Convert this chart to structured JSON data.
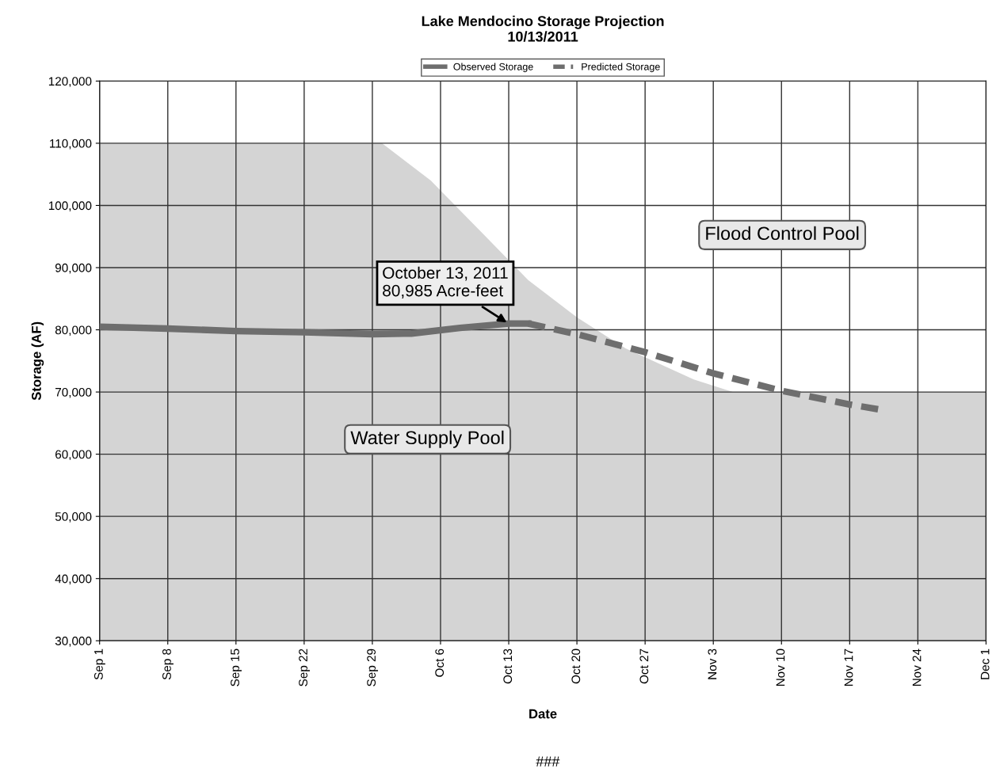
{
  "chart_data": {
    "type": "line",
    "title": "Lake Mendocino Storage Projection\n10/13/2011",
    "xlabel": "Date",
    "ylabel": "Storage (AF)",
    "series": [
      {
        "type": "area",
        "color": "#d4d4d4",
        "x": [
          "2011-09-01",
          "2011-09-30",
          "2011-10-05",
          "2011-10-10",
          "2011-10-15",
          "2011-10-20",
          "2011-10-25",
          "2011-11-01",
          "2011-11-05",
          "2011-12-01"
        ],
        "values": [
          110000,
          110000,
          104000,
          96000,
          88000,
          82000,
          77000,
          72000,
          70000,
          70000
        ]
      },
      {
        "name": "Observed Storage",
        "type": "line",
        "line_style": "solid",
        "color": "#6e6e6e",
        "x": [
          "2011-09-01",
          "2011-09-08",
          "2011-09-15",
          "2011-09-22",
          "2011-09-29",
          "2011-10-03",
          "2011-10-08",
          "2011-10-13",
          "2011-10-15"
        ],
        "values": [
          80500,
          80200,
          79800,
          79600,
          79300,
          79400,
          80300,
          81000,
          81000
        ]
      },
      {
        "name": "Predicted Storage",
        "type": "line",
        "line_style": "dashed",
        "color": "#6e6e6e",
        "x": [
          "2011-10-15",
          "2011-10-20",
          "2011-10-27",
          "2011-11-03",
          "2011-11-10",
          "2011-11-17",
          "2011-11-20"
        ],
        "values": [
          81000,
          79300,
          76400,
          73000,
          70200,
          68000,
          67200
        ]
      }
    ],
    "xlim": [
      "2011-09-01",
      "2011-12-01"
    ],
    "xticks": [
      {
        "value": "2011-09-01",
        "label": "Sep 1"
      },
      {
        "value": "2011-09-08",
        "label": "Sep 8"
      },
      {
        "value": "2011-09-15",
        "label": "Sep 15"
      },
      {
        "value": "2011-09-22",
        "label": "Sep 22"
      },
      {
        "value": "2011-09-29",
        "label": "Sep 29"
      },
      {
        "value": "2011-10-06",
        "label": "Oct 6"
      },
      {
        "value": "2011-10-13",
        "label": "Oct 13"
      },
      {
        "value": "2011-10-20",
        "label": "Oct 20"
      },
      {
        "value": "2011-10-27",
        "label": "Oct 27"
      },
      {
        "value": "2011-11-03",
        "label": "Nov 3"
      },
      {
        "value": "2011-11-10",
        "label": "Nov 10"
      },
      {
        "value": "2011-11-17",
        "label": "Nov 17"
      },
      {
        "value": "2011-11-24",
        "label": "Nov 24"
      },
      {
        "value": "2011-12-01",
        "label": "Dec 1"
      }
    ],
    "ylim": [
      30000,
      120000
    ],
    "yticks": [
      {
        "value": 30000,
        "label": "30,000"
      },
      {
        "value": 40000,
        "label": "40,000"
      },
      {
        "value": 50000,
        "label": "50,000"
      },
      {
        "value": 60000,
        "label": "60,000"
      },
      {
        "value": 70000,
        "label": "70,000"
      },
      {
        "value": 80000,
        "label": "80,000"
      },
      {
        "value": 90000,
        "label": "90,000"
      },
      {
        "value": 100000,
        "label": "100,000"
      },
      {
        "value": 110000,
        "label": "110,000"
      },
      {
        "value": 120000,
        "label": "120,000"
      }
    ],
    "grid": true,
    "legend": "top",
    "annotations": [
      {
        "text": "October 13, 2011\n80,985 Acre-feet",
        "x": "2011-10-13",
        "y": 80985
      },
      "Flood Control Pool",
      "Water Supply Pool",
      "###"
    ]
  }
}
